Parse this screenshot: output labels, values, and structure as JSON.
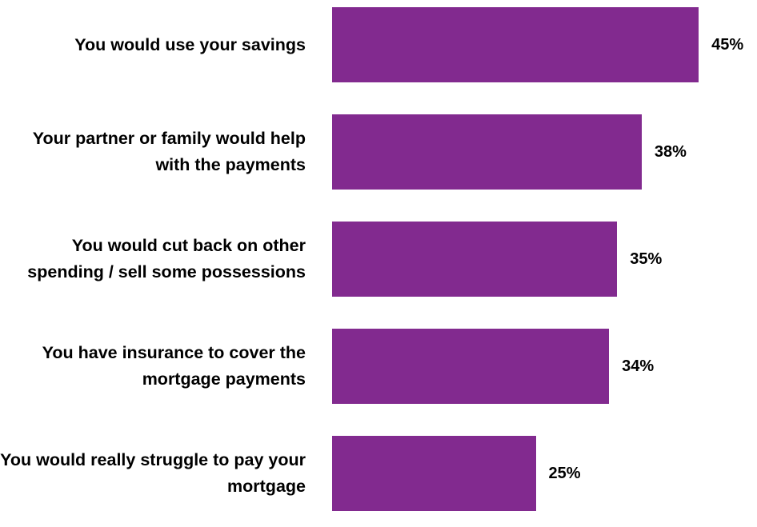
{
  "chart_data": {
    "type": "bar",
    "orientation": "horizontal",
    "categories": [
      "You would use your savings",
      "Your partner or family would help with the payments",
      "You would cut back on other spending / sell some possessions",
      "You have insurance to cover the mortgage payments",
      "You would really struggle to pay your mortgage"
    ],
    "values": [
      45,
      38,
      35,
      34,
      25
    ],
    "value_labels": [
      "45%",
      "38%",
      "35%",
      "34%",
      "25%"
    ],
    "color": "#822a8f"
  }
}
